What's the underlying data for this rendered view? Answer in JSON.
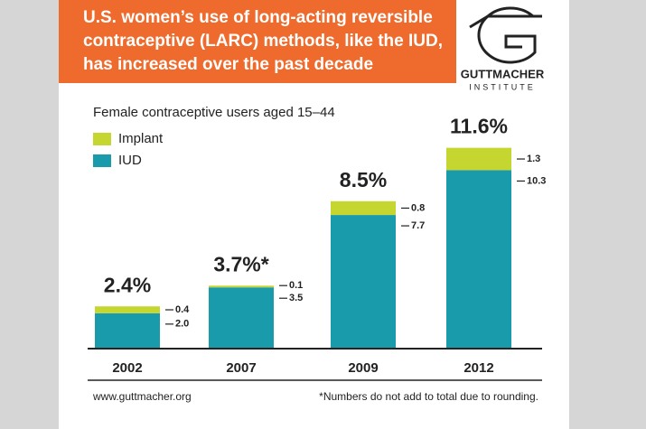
{
  "chart_data": {
    "type": "stacked-bar",
    "title": [
      "U.S. women’s use of long-acting reversible",
      "contraceptive (LARC) methods, like the IUD,",
      "has increased over the past decade"
    ],
    "logo": {
      "name": "GUTTMACHER",
      "subname": "INSTITUTE"
    },
    "subtitle": "Female contraceptive users aged 15–44",
    "categories": [
      "2002",
      "2007",
      "2009",
      "2012"
    ],
    "series": [
      {
        "name": "IUD",
        "color": "#1a9bab",
        "values": [
          2.0,
          3.5,
          7.7,
          10.3
        ],
        "value_labels": [
          "2.0",
          "3.5",
          "7.7",
          "10.3"
        ]
      },
      {
        "name": "Implant",
        "color": "#c5d631",
        "values": [
          0.4,
          0.1,
          0.8,
          1.3
        ]
      }
    ],
    "totals": {
      "values": [
        2.4,
        3.7,
        8.5,
        11.6
      ],
      "value_labels": [
        "2.4%",
        "3.7%*",
        "8.5%",
        "11.6%"
      ]
    },
    "ylim": [
      0,
      12
    ],
    "source": "www.guttmacher.org",
    "note": "*Numbers do not add to total due to rounding."
  }
}
